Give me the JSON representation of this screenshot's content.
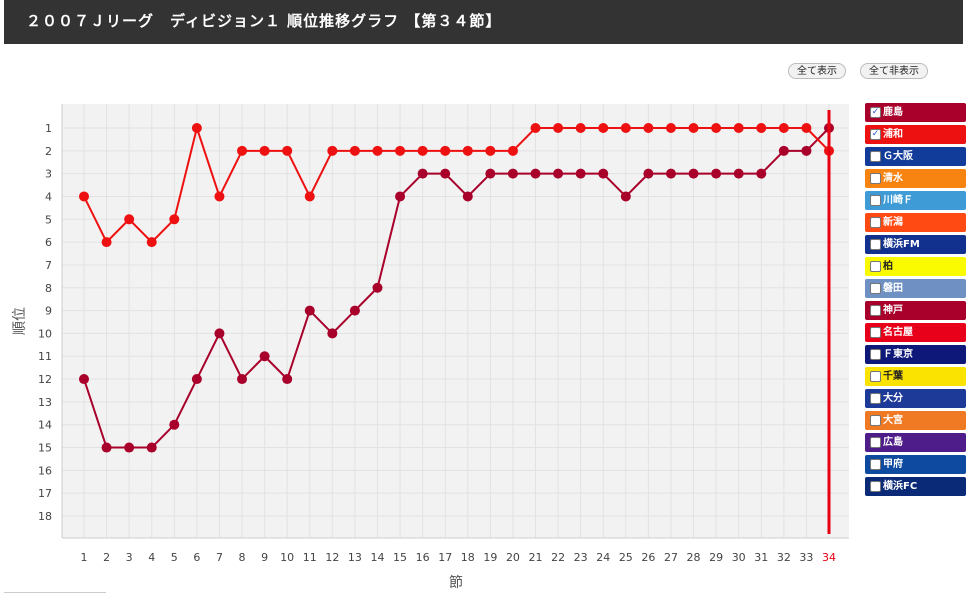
{
  "header": {
    "title": "２００７Ｊリーグ　ディビジョン１ 順位推移グラフ 【第３４節】"
  },
  "controls": {
    "show_all": "全て表示",
    "hide_all": "全て非表示"
  },
  "legend": {
    "items": [
      {
        "label": "鹿島",
        "color": "#a8002a",
        "checked": true
      },
      {
        "label": "浦和",
        "color": "#ee1111",
        "checked": true
      },
      {
        "label": "Ｇ大阪",
        "color": "#123c9a",
        "checked": false
      },
      {
        "label": "清水",
        "color": "#f78411",
        "checked": false
      },
      {
        "label": "川崎Ｆ",
        "color": "#3e9bd6",
        "checked": false
      },
      {
        "label": "新潟",
        "color": "#ff4a14",
        "checked": false
      },
      {
        "label": "横浜FM",
        "color": "#12318f",
        "checked": false
      },
      {
        "label": "柏",
        "color": "#fafa00",
        "checked": false
      },
      {
        "label": "磐田",
        "color": "#6f90c2",
        "checked": false
      },
      {
        "label": "神戸",
        "color": "#a8002a",
        "checked": false
      },
      {
        "label": "名古屋",
        "color": "#e8001a",
        "checked": false
      },
      {
        "label": "Ｆ東京",
        "color": "#0e1878",
        "checked": false
      },
      {
        "label": "千葉",
        "color": "#fae300",
        "checked": false
      },
      {
        "label": "大分",
        "color": "#1e3a98",
        "checked": false
      },
      {
        "label": "大宮",
        "color": "#f07a24",
        "checked": false
      },
      {
        "label": "広島",
        "color": "#4e1d8a",
        "checked": false
      },
      {
        "label": "甲府",
        "color": "#0e4aa0",
        "checked": false
      },
      {
        "label": "横浜FC",
        "color": "#0a2a78",
        "checked": false
      }
    ]
  },
  "chart_data": {
    "type": "line",
    "title": "",
    "xlabel": "節",
    "ylabel": "順位",
    "x": [
      1,
      2,
      3,
      4,
      5,
      6,
      7,
      8,
      9,
      10,
      11,
      12,
      13,
      14,
      15,
      16,
      17,
      18,
      19,
      20,
      21,
      22,
      23,
      24,
      25,
      26,
      27,
      28,
      29,
      30,
      31,
      32,
      33,
      34
    ],
    "ylim": [
      1,
      18
    ],
    "y_inverted": true,
    "grid": true,
    "legend_position": "right",
    "current_round": 34,
    "current_round_color": "#e60012",
    "series": [
      {
        "name": "鹿島",
        "color": "#a8002a",
        "values": [
          12,
          15,
          15,
          15,
          14,
          12,
          10,
          12,
          11,
          12,
          9,
          10,
          9,
          8,
          4,
          3,
          3,
          4,
          3,
          3,
          3,
          3,
          3,
          3,
          4,
          3,
          3,
          3,
          3,
          3,
          3,
          2,
          2,
          1
        ]
      },
      {
        "name": "浦和",
        "color": "#ee1111",
        "values": [
          4,
          6,
          5,
          6,
          5,
          1,
          4,
          2,
          2,
          2,
          4,
          2,
          2,
          2,
          2,
          2,
          2,
          2,
          2,
          2,
          1,
          1,
          1,
          1,
          1,
          1,
          1,
          1,
          1,
          1,
          1,
          1,
          1,
          2
        ]
      }
    ]
  }
}
